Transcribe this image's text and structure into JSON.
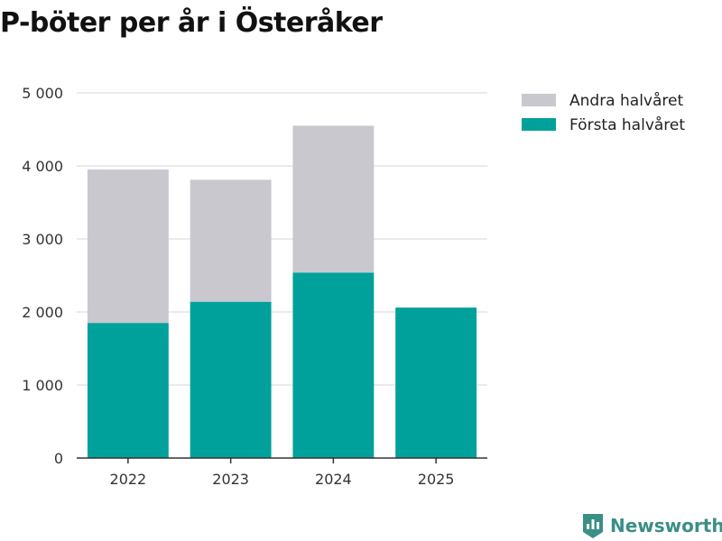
{
  "chart_data": {
    "type": "bar",
    "stacked": true,
    "title": "P-böter per år i Österåker",
    "categories": [
      "2022",
      "2023",
      "2024",
      "2025"
    ],
    "series": [
      {
        "name": "Första halvåret",
        "color": "#00a19a",
        "values": [
          1850,
          2140,
          2540,
          2060
        ]
      },
      {
        "name": "Andra halvåret",
        "color": "#c8c8ce",
        "values": [
          2100,
          1670,
          2010,
          0
        ]
      }
    ],
    "ylim": [
      0,
      5000
    ],
    "yticks": [
      0,
      1000,
      2000,
      3000,
      4000,
      5000
    ],
    "ytick_labels": [
      "0",
      "1 000",
      "2 000",
      "3 000",
      "4 000",
      "5 000"
    ],
    "grid": true,
    "legend_position": "top-right",
    "legend_order": [
      "Andra halvåret",
      "Första halvåret"
    ]
  },
  "branding": {
    "logo_text": "Newsworthy",
    "logo_icon": "bar-chart-badge-icon",
    "logo_color": "#3a8f86"
  }
}
